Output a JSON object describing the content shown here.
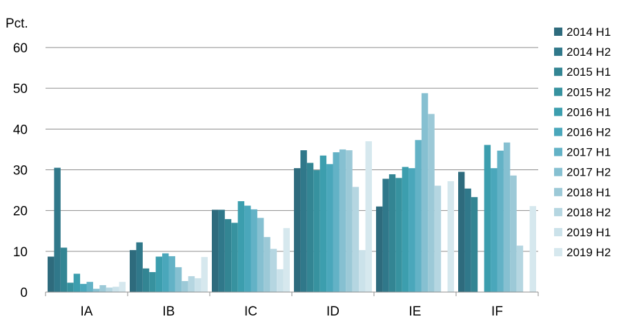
{
  "chart_data": {
    "type": "bar",
    "title": "",
    "ylabel": "Pct.",
    "xlabel": "",
    "ylim": [
      0,
      60
    ],
    "yticks": [
      0,
      10,
      20,
      30,
      40,
      50,
      60
    ],
    "grid": true,
    "legend_position": "right",
    "categories": [
      "IA",
      "IB",
      "IC",
      "ID",
      "IE",
      "IF"
    ],
    "series": [
      {
        "name": "2014 H1",
        "color": "#2e6b7d",
        "values": [
          8.7,
          10.3,
          20.2,
          30.4,
          21.0,
          29.5
        ]
      },
      {
        "name": "2014 H2",
        "color": "#30788a",
        "values": [
          30.5,
          12.2,
          20.2,
          34.8,
          27.8,
          25.4
        ]
      },
      {
        "name": "2015 H1",
        "color": "#338593",
        "values": [
          10.9,
          5.8,
          17.9,
          31.7,
          28.9,
          23.3
        ]
      },
      {
        "name": "2015 H2",
        "color": "#37929f",
        "values": [
          2.3,
          4.9,
          17.0,
          29.9,
          28.0,
          0
        ]
      },
      {
        "name": "2016 H1",
        "color": "#3c9eae",
        "values": [
          4.5,
          8.7,
          22.3,
          33.5,
          30.7,
          36.1
        ]
      },
      {
        "name": "2016 H2",
        "color": "#4aa7bb",
        "values": [
          2.0,
          9.5,
          21.2,
          31.4,
          30.4,
          30.4
        ]
      },
      {
        "name": "2017 H1",
        "color": "#63b2c6",
        "values": [
          2.5,
          8.8,
          20.3,
          34.3,
          37.3,
          34.7
        ]
      },
      {
        "name": "2017 H2",
        "color": "#86c0d1",
        "values": [
          0.8,
          6.1,
          18.2,
          35.0,
          48.8,
          36.7
        ]
      },
      {
        "name": "2018 H1",
        "color": "#9cc9d7",
        "values": [
          1.7,
          2.7,
          13.5,
          34.8,
          43.7,
          28.6
        ]
      },
      {
        "name": "2018 H2",
        "color": "#b5d6e1",
        "values": [
          1.1,
          3.9,
          10.6,
          25.8,
          26.1,
          11.4
        ]
      },
      {
        "name": "2019 H1",
        "color": "#cbe2ea",
        "values": [
          1.3,
          3.4,
          5.6,
          10.3,
          0,
          0
        ]
      },
      {
        "name": "2019 H2",
        "color": "#d6e8ee",
        "values": [
          2.5,
          8.6,
          15.7,
          37.0,
          27.2,
          21.1
        ]
      }
    ]
  }
}
